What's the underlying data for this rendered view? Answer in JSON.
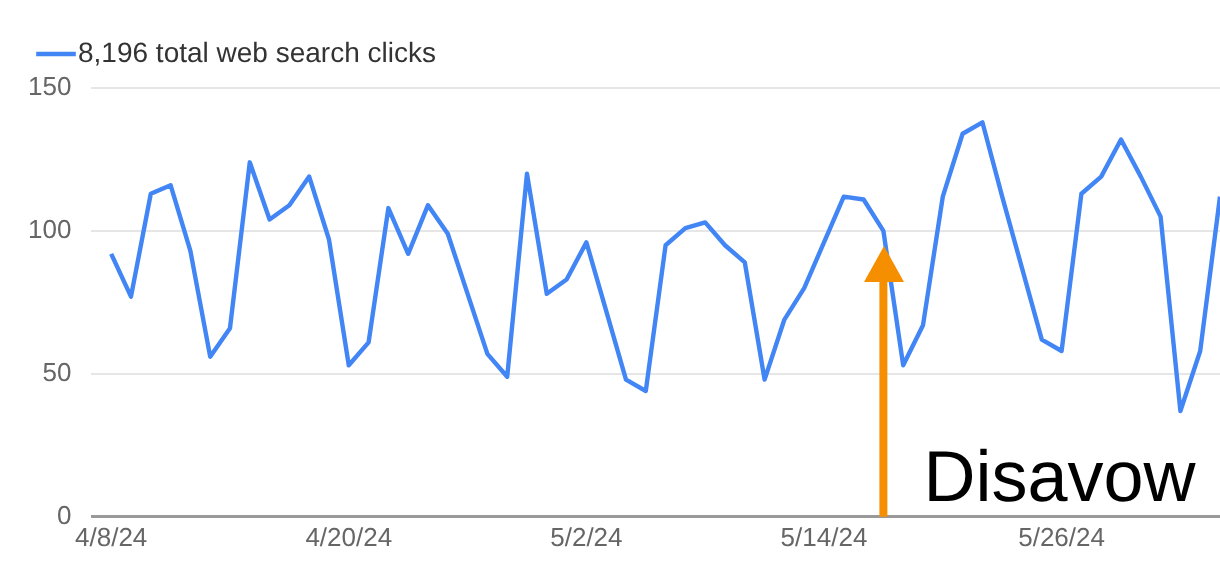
{
  "chart_data": {
    "type": "line",
    "legend": "top left",
    "grid": "y",
    "marker": "none",
    "x": [
      "--04-08",
      "--04-09",
      "--04-10",
      "--04-11",
      "--04-12",
      "--04-13",
      "--04-14",
      "--04-15",
      "--04-16",
      "--04-17",
      "--04-18",
      "--04-19",
      "--04-20",
      "--04-21",
      "--04-22",
      "--04-23",
      "--04-24",
      "--04-25",
      "--04-26",
      "--04-27",
      "--04-28",
      "--04-29",
      "--04-30",
      "--05-01",
      "--05-02",
      "--05-03",
      "--05-04",
      "--05-05",
      "--05-06",
      "--05-07",
      "--05-08",
      "--05-09",
      "--05-10",
      "--05-11",
      "--05-12",
      "--05-13",
      "--05-14",
      "--05-15",
      "--05-16",
      "--05-17",
      "--05-18",
      "--05-19",
      "--05-20",
      "--05-21",
      "--05-22",
      "--05-23",
      "--05-24",
      "--05-25",
      "--05-26",
      "--05-27",
      "--05-28",
      "--05-29",
      "--05-30",
      "--05-31",
      "--06-01",
      "--06-02",
      "--06-03"
    ],
    "series": [
      {
        "name": "8,196 total web search clicks",
        "color": "#4285f4",
        "values": [
          92,
          77,
          113,
          116,
          93,
          56,
          66,
          124,
          104,
          109,
          119,
          97,
          53,
          61,
          108,
          92,
          109,
          99,
          78,
          57,
          49,
          120,
          78,
          83,
          96,
          72,
          48,
          44,
          95,
          101,
          103,
          95,
          89,
          48,
          69,
          80,
          96,
          112,
          111,
          100,
          53,
          67,
          112,
          134,
          138,
          112,
          87,
          62,
          58,
          113,
          119,
          132,
          119,
          105,
          37,
          58,
          112
        ]
      }
    ],
    "xlim": [
      "--04-07",
      "--06-03"
    ],
    "xticks": [
      {
        "value": "--04-08",
        "label": "4/8/24"
      },
      {
        "value": "--04-20",
        "label": "4/20/24"
      },
      {
        "value": "--05-02",
        "label": "5/2/24"
      },
      {
        "value": "--05-14",
        "label": "5/14/24"
      },
      {
        "value": "--05-26",
        "label": "5/26/24"
      }
    ],
    "ylim": [
      0,
      150
    ],
    "yticks": [
      0,
      50,
      100,
      150
    ],
    "ref_lines": [
      {
        "axis": "x",
        "value": "--05-17",
        "label": "Disavow",
        "color": "#f58f00"
      }
    ]
  }
}
